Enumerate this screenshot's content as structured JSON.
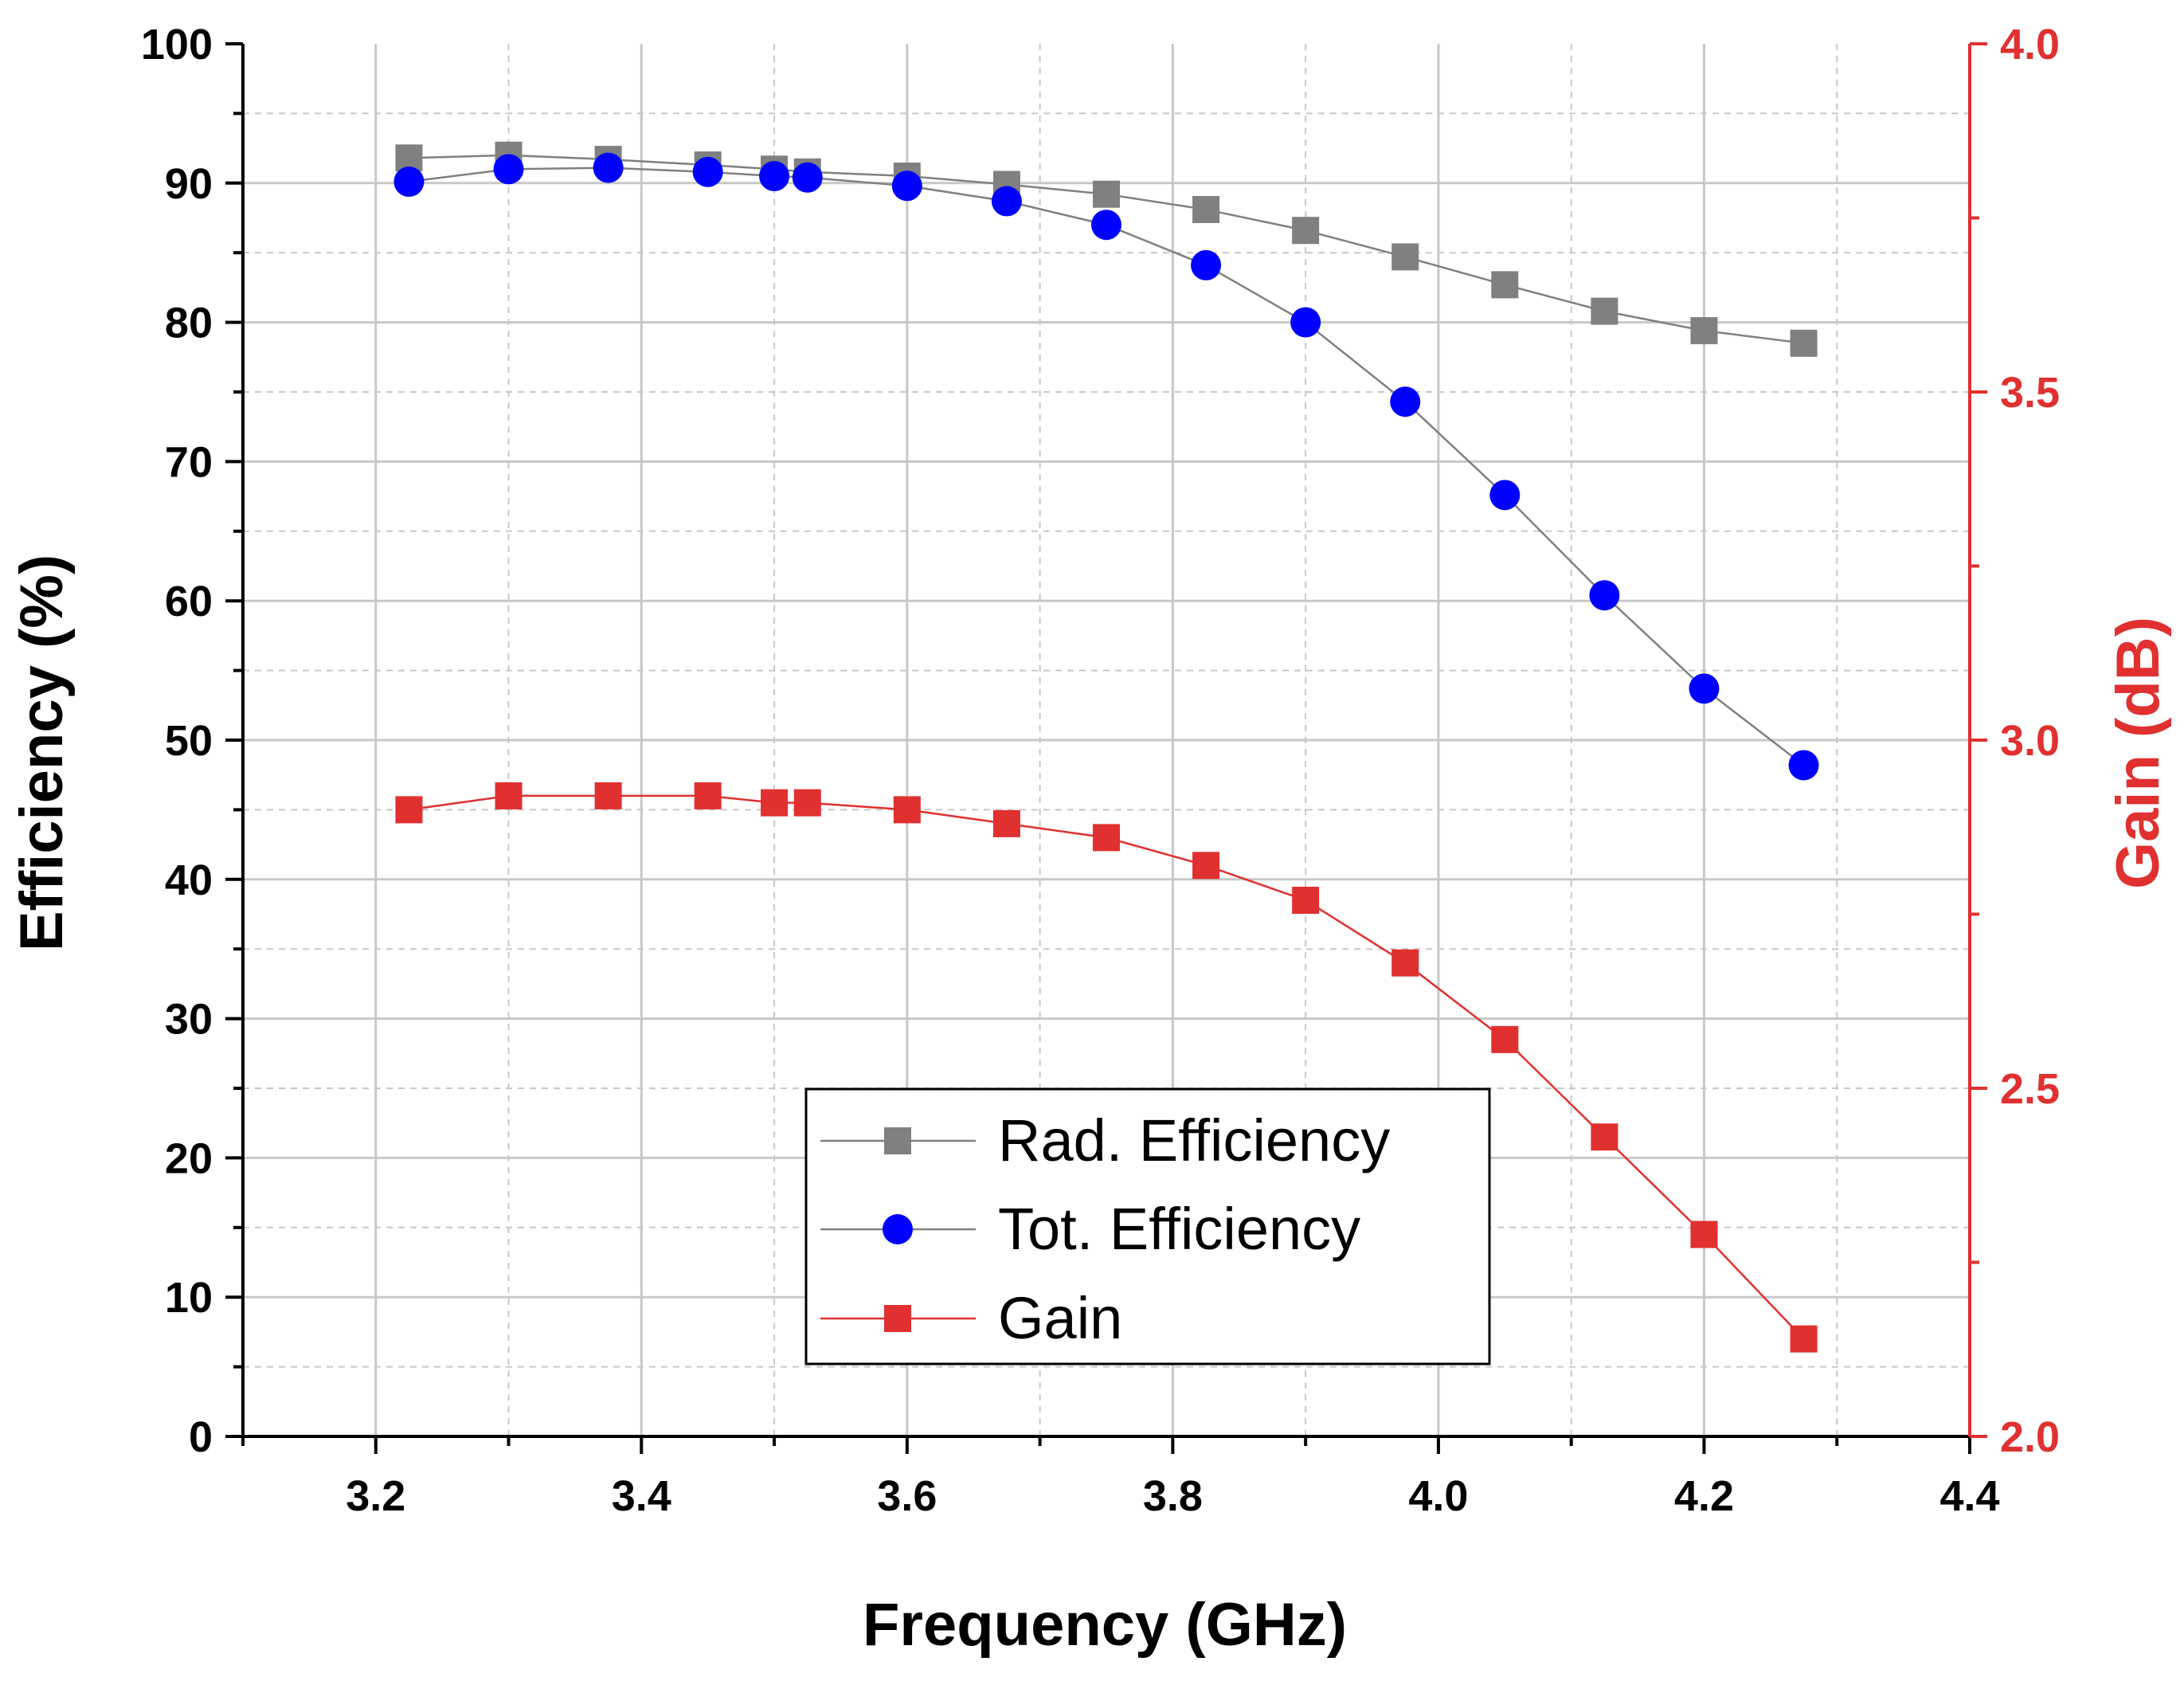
{
  "chart_data": {
    "type": "line",
    "title": "",
    "xlabel": "Frequency (GHz)",
    "ylabel": "Efficiency (%)",
    "y2label": "Gain (dB)",
    "xlim": [
      3.1,
      4.4
    ],
    "ylim": [
      0,
      100
    ],
    "y2lim": [
      2.0,
      4.0
    ],
    "xticks": [
      "3.2",
      "3.4",
      "3.6",
      "3.8",
      "4.0",
      "4.2",
      "4.4"
    ],
    "yticks": [
      "0",
      "10",
      "20",
      "30",
      "40",
      "50",
      "60",
      "70",
      "80",
      "90",
      "100"
    ],
    "y2ticks": [
      "2.0",
      "2.5",
      "3.0",
      "3.5",
      "4.0"
    ],
    "grid": true,
    "legend_position": "bottom-center",
    "x": [
      3.225,
      3.3,
      3.375,
      3.45,
      3.5,
      3.525,
      3.6,
      3.675,
      3.75,
      3.825,
      3.9,
      3.975,
      4.05,
      4.125,
      4.2,
      4.275
    ],
    "series": [
      {
        "name": "Rad. Efficiency",
        "axis": "left",
        "marker": "square",
        "color": "#808080",
        "line_color": "#808080",
        "values": [
          91.8,
          92.0,
          91.7,
          91.3,
          91.0,
          90.8,
          90.5,
          89.9,
          89.2,
          88.1,
          86.6,
          84.7,
          82.7,
          80.8,
          79.4,
          78.5
        ]
      },
      {
        "name": "Tot. Efficiency",
        "axis": "left",
        "marker": "circle",
        "color": "#0000ff",
        "line_color": "#808080",
        "values": [
          90.1,
          91.0,
          91.1,
          90.8,
          90.5,
          90.4,
          89.8,
          88.7,
          87.0,
          84.1,
          80.0,
          74.3,
          67.6,
          60.4,
          53.7,
          48.2
        ]
      },
      {
        "name": "Gain",
        "axis": "right",
        "marker": "square",
        "color": "#e03030",
        "line_color": "#e03030",
        "values": [
          2.9,
          2.92,
          2.92,
          2.92,
          2.91,
          2.91,
          2.9,
          2.88,
          2.86,
          2.82,
          2.77,
          2.68,
          2.57,
          2.43,
          2.29,
          2.14
        ]
      }
    ],
    "colors": {
      "axis": "#000000",
      "right_axis": "#e03030",
      "grid": "#c8c8c8"
    }
  }
}
